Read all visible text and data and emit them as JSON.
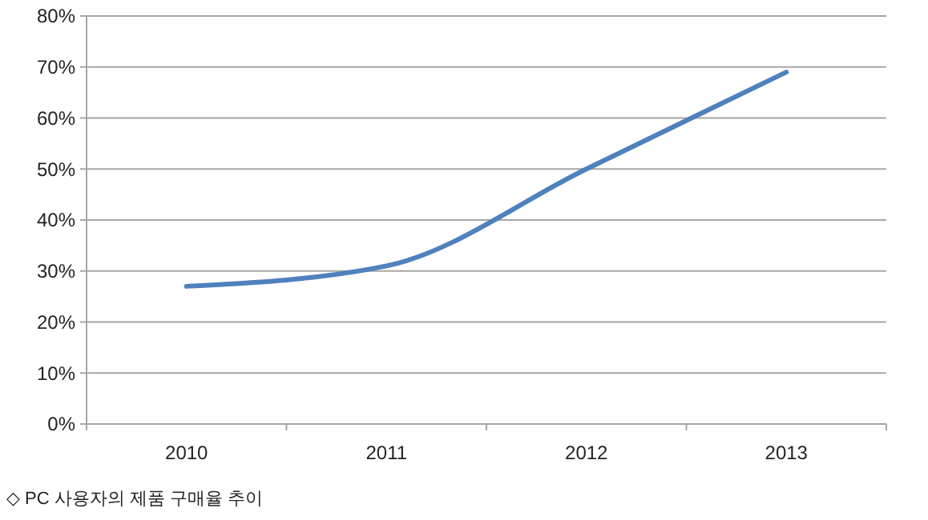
{
  "chart_data": {
    "type": "line",
    "categories": [
      "2010",
      "2011",
      "2012",
      "2013"
    ],
    "series": [
      {
        "color": "#4f81bd",
        "values": [
          27,
          31,
          50,
          69
        ]
      }
    ],
    "ylim": [
      0,
      80
    ],
    "yticks": [
      {
        "value": 0,
        "label": "0%"
      },
      {
        "value": 10,
        "label": "10%"
      },
      {
        "value": 20,
        "label": "20%"
      },
      {
        "value": 30,
        "label": "30%"
      },
      {
        "value": 40,
        "label": "40%"
      },
      {
        "value": 50,
        "label": "50%"
      },
      {
        "value": 60,
        "label": "60%"
      },
      {
        "value": 70,
        "label": "70%"
      },
      {
        "value": 80,
        "label": "80%"
      }
    ],
    "grid": "y",
    "marker": "none",
    "line_style": "solid",
    "annotations": [
      "◇ PC 사용자의 제품 구매율 추이"
    ]
  }
}
